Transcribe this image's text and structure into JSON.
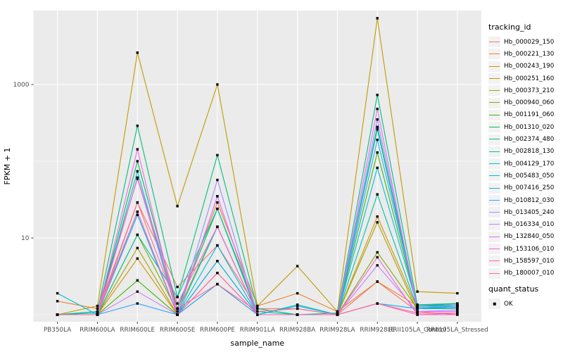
{
  "figure": {
    "xlabel": "sample_name",
    "ylabel": "FPKM + 1",
    "legend_tracking_title": "tracking_id",
    "legend_quant_title": "quant_status",
    "legend_quant_items": [
      "OK"
    ],
    "colors": {
      "panel_background": "#EBEBEB",
      "grid_line": "#FFFFFF",
      "axis_tick_text": "#4D4D4D",
      "axis_tick_mark": "#333333",
      "legend_key_background": "#F2F2F2",
      "point_color": "#000000"
    }
  },
  "chart_data": {
    "type": "line",
    "title": "",
    "xlabel": "sample_name",
    "ylabel": "FPKM + 1",
    "x_type": "categorical",
    "yscale": "log10",
    "y_major_ticks": [
      10,
      1000
    ],
    "y_minor_gridlines": [
      1,
      100
    ],
    "ylim": [
      0.8,
      9200
    ],
    "grid": true,
    "legend_position": "right",
    "point_marker": "black-square",
    "categories": [
      "PB350LA",
      "RRIM600LA",
      "RRIM600LE",
      "RRIM600SE",
      "RRIM600PE",
      "RRIM901LA",
      "RRIM928BA",
      "RRIM928LA",
      "RRIM928LE",
      "RRII105LA_Control",
      "RRII105LA_Stressed"
    ],
    "series": [
      {
        "name": "Hb_000029_150",
        "color": "#F8766D",
        "values": [
          1.0,
          1.1,
          29,
          2.3,
          8,
          1.2,
          1.2,
          1.0,
          2.7,
          1.1,
          1.0
        ]
      },
      {
        "name": "Hb_000221_130",
        "color": "#EA8331",
        "values": [
          1.5,
          1.2,
          59,
          1.2,
          29,
          1.3,
          1.9,
          1.1,
          2.7,
          1.3,
          1.3
        ]
      },
      {
        "name": "Hb_000243_190",
        "color": "#D89000",
        "values": [
          1.0,
          1.0,
          5.4,
          1.0,
          3.5,
          1.0,
          1.0,
          1.0,
          19,
          1.2,
          1.2
        ]
      },
      {
        "name": "Hb_000251_160",
        "color": "#C09B00",
        "values": [
          1.0,
          1.3,
          2600,
          26,
          1000,
          1.3,
          4.3,
          1.1,
          7300,
          2.0,
          1.9
        ]
      },
      {
        "name": "Hb_000373_210",
        "color": "#A3A500",
        "values": [
          1.0,
          1.0,
          7.4,
          1.0,
          5,
          1.0,
          1.0,
          1.0,
          16,
          1.1,
          1.1
        ]
      },
      {
        "name": "Hb_000940_060",
        "color": "#7CAE00",
        "values": [
          1.0,
          1.0,
          11,
          1.1,
          14,
          1.0,
          1.0,
          1.0,
          6.5,
          1.2,
          1.3
        ]
      },
      {
        "name": "Hb_001191_060",
        "color": "#39B600",
        "values": [
          1.0,
          1.0,
          2.8,
          1.0,
          2.5,
          1.0,
          1.0,
          1.0,
          130,
          1.3,
          1.4
        ]
      },
      {
        "name": "Hb_001310_020",
        "color": "#00BB4E",
        "values": [
          1.0,
          1.0,
          100,
          1.2,
          24,
          1.0,
          1.0,
          1.0,
          280,
          1.25,
          1.3
        ]
      },
      {
        "name": "Hb_002374_480",
        "color": "#00BF7D",
        "values": [
          1.0,
          1.1,
          290,
          1.7,
          120,
          1.2,
          1.0,
          1.05,
          730,
          1.35,
          1.4
        ]
      },
      {
        "name": "Hb_002818_130",
        "color": "#00C1A3",
        "values": [
          1.0,
          1.0,
          11,
          1.7,
          24,
          1.1,
          1.0,
          1.0,
          37,
          1.2,
          1.2
        ]
      },
      {
        "name": "Hb_004129_170",
        "color": "#00BFC4",
        "values": [
          1.0,
          1.05,
          22,
          1.0,
          14,
          1.0,
          1.35,
          1.0,
          260,
          1.2,
          1.25
        ]
      },
      {
        "name": "Hb_005483_050",
        "color": "#00BAE0",
        "values": [
          1.9,
          1.0,
          74,
          1.0,
          8,
          1.0,
          1.3,
          1.0,
          82,
          1.3,
          1.3
        ]
      },
      {
        "name": "Hb_007416_250",
        "color": "#00B0F6",
        "values": [
          1.0,
          1.0,
          20,
          1.0,
          5,
          1.0,
          1.0,
          1.0,
          1.4,
          1.2,
          1.3
        ]
      },
      {
        "name": "Hb_010812_030",
        "color": "#35A2FF",
        "values": [
          1.0,
          1.0,
          1.4,
          1.0,
          2.5,
          1.0,
          1.0,
          1.0,
          190,
          1.3,
          1.35
        ]
      },
      {
        "name": "Hb_013405_240",
        "color": "#9590FF",
        "values": [
          1.0,
          1.0,
          61,
          1.0,
          57,
          1.0,
          1.0,
          1.0,
          350,
          1.25,
          1.3
        ]
      },
      {
        "name": "Hb_016334_010",
        "color": "#C77CFF",
        "values": [
          1.0,
          1.0,
          2.0,
          1.0,
          35,
          1.0,
          1.0,
          1.0,
          4.4,
          1.1,
          1.15
        ]
      },
      {
        "name": "Hb_132840_050",
        "color": "#E76BF3",
        "values": [
          1.0,
          1.0,
          143,
          1.0,
          35,
          1.0,
          1.0,
          1.0,
          480,
          1.1,
          1.1
        ]
      },
      {
        "name": "Hb_153106_010",
        "color": "#FA62DB",
        "values": [
          1.0,
          1.0,
          61,
          1.4,
          14,
          1.0,
          1.0,
          1.0,
          5.6,
          1.0,
          1.0
        ]
      },
      {
        "name": "Hb_158597_010",
        "color": "#FF62BC",
        "values": [
          1.0,
          1.0,
          22,
          1.0,
          3.5,
          1.0,
          1.0,
          1.0,
          1.4,
          1.0,
          1.05
        ]
      },
      {
        "name": "Hb_180007_010",
        "color": "#FF6A98",
        "values": [
          1.0,
          1.0,
          29,
          1.2,
          2.5,
          1.1,
          1.2,
          1.0,
          1.4,
          1.05,
          1.05
        ]
      }
    ]
  }
}
